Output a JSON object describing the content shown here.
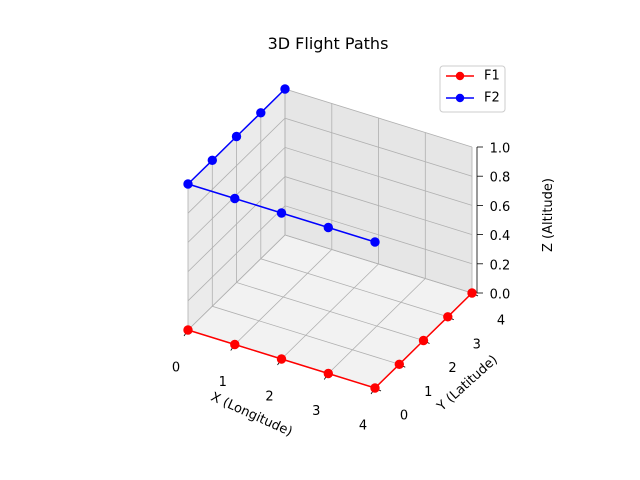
{
  "chart_data": {
    "type": "line",
    "title": "3D Flight Paths",
    "xlabel": "X (Longitude)",
    "ylabel": "Y (Latitude)",
    "zlabel": "Z (Altitude)",
    "x_ticks": [
      "0",
      "1",
      "2",
      "3",
      "4"
    ],
    "y_ticks": [
      "0",
      "1",
      "2",
      "3",
      "4"
    ],
    "z_ticks": [
      "0.0",
      "0.2",
      "0.4",
      "0.6",
      "0.8",
      "1.0"
    ],
    "xlim": [
      0,
      4
    ],
    "ylim": [
      0,
      4
    ],
    "zlim": [
      0,
      1
    ],
    "grid": true,
    "legend_position": "top-right",
    "series": [
      {
        "name": "F1",
        "color": "#ff0000",
        "points": [
          {
            "x": 0,
            "y": 0,
            "z": 0
          },
          {
            "x": 1,
            "y": 0,
            "z": 0
          },
          {
            "x": 2,
            "y": 0,
            "z": 0
          },
          {
            "x": 3,
            "y": 0,
            "z": 0
          },
          {
            "x": 4,
            "y": 0,
            "z": 0
          },
          {
            "x": 4,
            "y": 1,
            "z": 0
          },
          {
            "x": 4,
            "y": 2,
            "z": 0
          },
          {
            "x": 4,
            "y": 3,
            "z": 0
          },
          {
            "x": 4,
            "y": 4,
            "z": 0
          }
        ]
      },
      {
        "name": "F2",
        "color": "#0000ff",
        "points": [
          {
            "x": 4,
            "y": 0,
            "z": 1
          },
          {
            "x": 3,
            "y": 0,
            "z": 1
          },
          {
            "x": 2,
            "y": 0,
            "z": 1
          },
          {
            "x": 1,
            "y": 0,
            "z": 1
          },
          {
            "x": 0,
            "y": 0,
            "z": 1
          },
          {
            "x": 0,
            "y": 1,
            "z": 1
          },
          {
            "x": 0,
            "y": 2,
            "z": 1
          },
          {
            "x": 0,
            "y": 3,
            "z": 1
          },
          {
            "x": 0,
            "y": 4,
            "z": 1
          }
        ]
      }
    ]
  }
}
